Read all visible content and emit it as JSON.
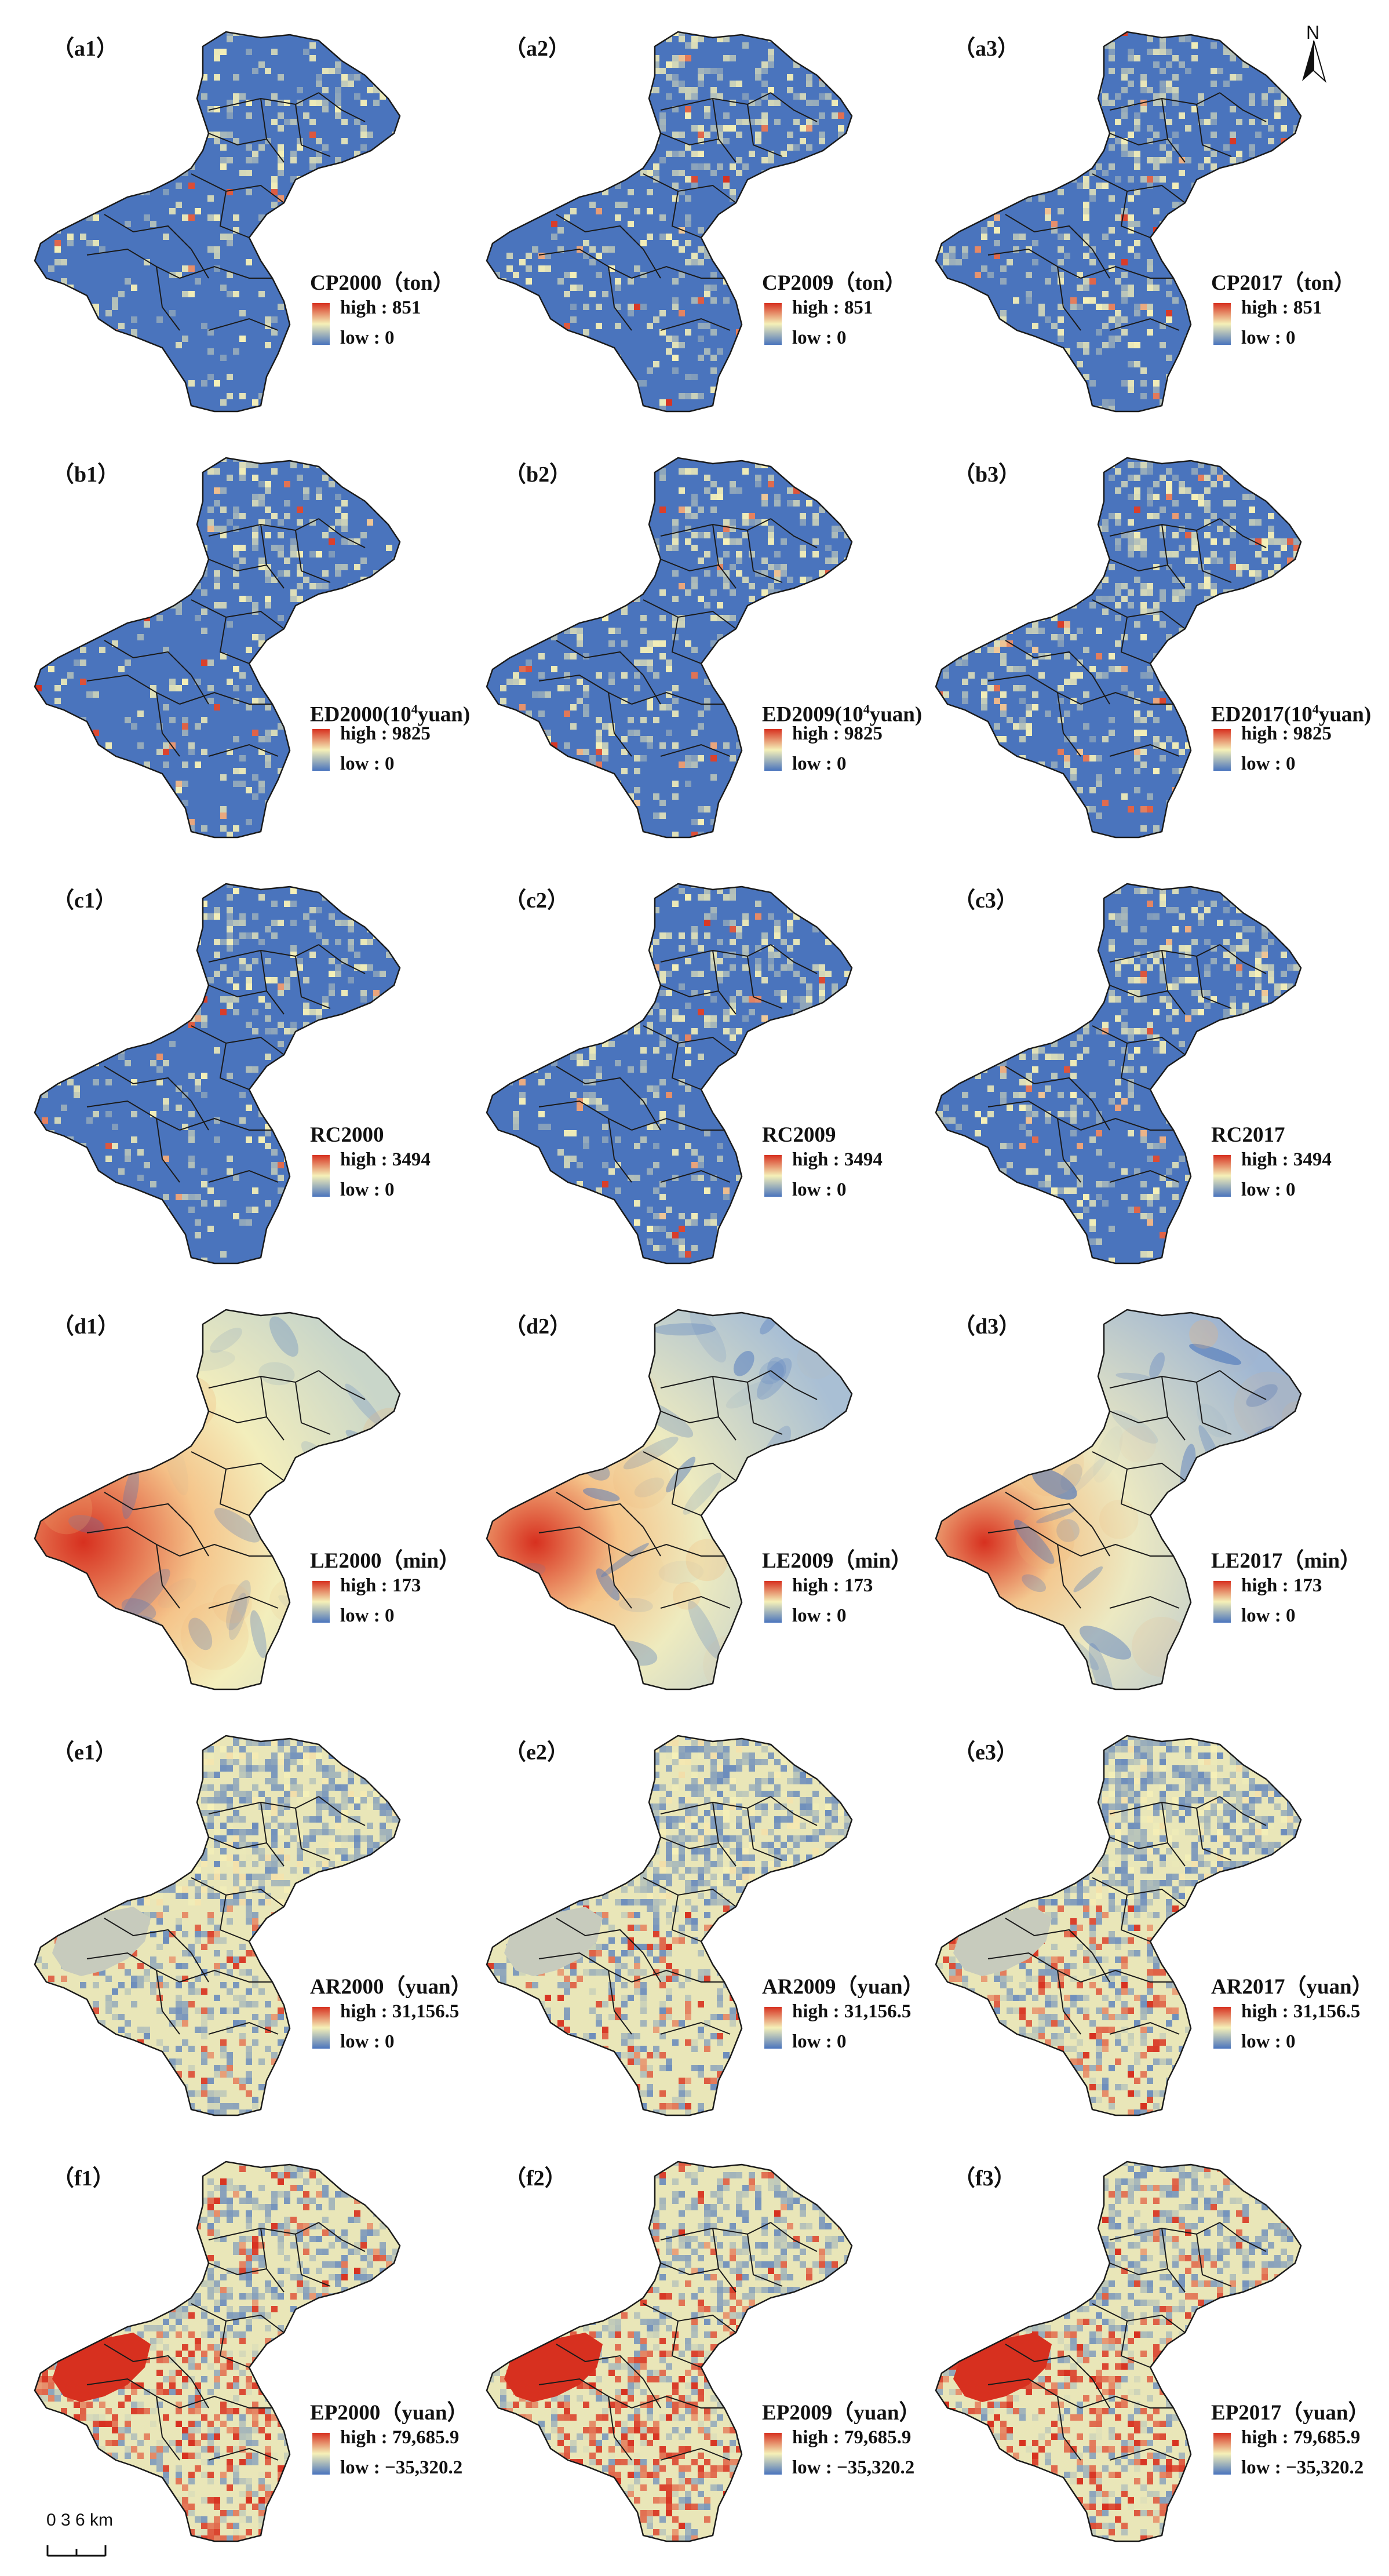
{
  "figure": {
    "north_label": "N",
    "scalebar_label": "0   3   6 km"
  },
  "rows": [
    {
      "scheme": "blue-sparse",
      "panels": [
        {
          "label": "（a1）",
          "title": "CP2000（ton）",
          "high": "high : 851",
          "low": "low : 0"
        },
        {
          "label": "（a2）",
          "title": "CP2009（ton）",
          "high": "high : 851",
          "low": "low : 0"
        },
        {
          "label": "（a3）",
          "title": "CP2017（ton）",
          "high": "high : 851",
          "low": "low : 0"
        }
      ]
    },
    {
      "scheme": "blue-sparse",
      "panels": [
        {
          "label": "（b1）",
          "title_pre": "ED2000(10",
          "title_sup": "4",
          "title_post": "yuan)",
          "high": "high : 9825",
          "low": "low : 0"
        },
        {
          "label": "（b2）",
          "title_pre": "ED2009(10",
          "title_sup": "4",
          "title_post": "yuan)",
          "high": "high : 9825",
          "low": "low : 0"
        },
        {
          "label": "（b3）",
          "title_pre": "ED2017(10",
          "title_sup": "4",
          "title_post": "yuan)",
          "high": "high : 9825",
          "low": "low : 0"
        }
      ]
    },
    {
      "scheme": "blue-sparse",
      "panels": [
        {
          "label": "（c1）",
          "title": "RC2000",
          "high": "high : 3494",
          "low": "low : 0"
        },
        {
          "label": "（c2）",
          "title": "RC2009",
          "high": "high : 3494",
          "low": "low : 0"
        },
        {
          "label": "（c3）",
          "title": "RC2017",
          "high": "high : 3494",
          "low": "low : 0"
        }
      ]
    },
    {
      "scheme": "smooth",
      "panels": [
        {
          "label": "（d1）",
          "title": "LE2000（min）",
          "high": "high : 173",
          "low": "low : 0"
        },
        {
          "label": "（d2）",
          "title": "LE2009（min）",
          "high": "high : 173",
          "low": "low : 0"
        },
        {
          "label": "（d3）",
          "title": "LE2017（min）",
          "high": "high : 173",
          "low": "low : 0"
        }
      ]
    },
    {
      "scheme": "mixed",
      "panels": [
        {
          "label": "（e1）",
          "title": "AR2000（yuan）",
          "high": "high : 31,156.5",
          "low": "low : 0"
        },
        {
          "label": "（e2）",
          "title": "AR2009（yuan）",
          "high": "high : 31,156.5",
          "low": "low : 0"
        },
        {
          "label": "（e3）",
          "title": "AR2017（yuan）",
          "high": "high : 31,156.5",
          "low": "low : 0"
        }
      ]
    },
    {
      "scheme": "mixed-red",
      "panels": [
        {
          "label": "（f1）",
          "title": "EP2000（yuan）",
          "high": "high : 79,685.9",
          "low": "low : −35,320.2"
        },
        {
          "label": "（f2）",
          "title": "EP2009（yuan）",
          "high": "high : 79,685.9",
          "low": "low : −35,320.2"
        },
        {
          "label": "（f3）",
          "title": "EP2017（yuan）",
          "high": "high : 79,685.9",
          "low": "low : −35,320.2"
        }
      ]
    }
  ],
  "colors": {
    "ramp_high": "#d7301f",
    "ramp_mid": "#f5f0b8",
    "ramp_low": "#4a74bd",
    "base_blue": "#4a74bd",
    "base_cream": "#e9e6b8",
    "boundary": "#1a1a1a",
    "gray_region": "#c7cbbd"
  }
}
